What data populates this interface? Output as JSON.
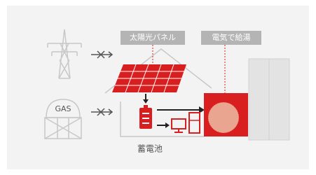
{
  "labels": {
    "solar_panel": "太陽光パネル",
    "electric_water_heating": "電気で給湯",
    "gas": "GAS",
    "battery": "蓄電池"
  }
}
